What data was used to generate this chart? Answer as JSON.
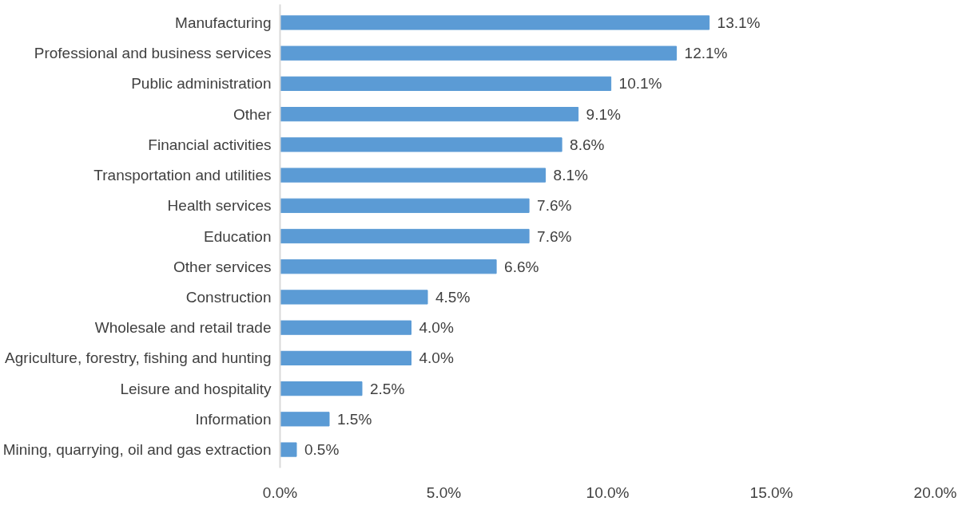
{
  "chart_data": {
    "type": "bar",
    "orientation": "horizontal",
    "categories": [
      "Manufacturing",
      "Professional and business services",
      "Public administration",
      "Other",
      "Financial activities",
      "Transportation and utilities",
      "Health services",
      "Education",
      "Other services",
      "Construction",
      "Wholesale and retail trade",
      "Agriculture, forestry, fishing and hunting",
      "Leisure and hospitality",
      "Information",
      "Mining, quarrying, oil and gas extraction"
    ],
    "values": [
      13.1,
      12.1,
      10.1,
      9.1,
      8.6,
      8.1,
      7.6,
      7.6,
      6.6,
      4.5,
      4.0,
      4.0,
      2.5,
      1.5,
      0.5
    ],
    "value_labels": [
      "13.1%",
      "12.1%",
      "10.1%",
      "9.1%",
      "8.6%",
      "8.1%",
      "7.6%",
      "7.6%",
      "6.6%",
      "4.5%",
      "4.0%",
      "4.0%",
      "2.5%",
      "1.5%",
      "0.5%"
    ],
    "color": "#5b9bd5",
    "xlim": [
      0,
      20
    ],
    "xticks": [
      {
        "value": 0,
        "label": "0.0%"
      },
      {
        "value": 5,
        "label": "5.0%"
      },
      {
        "value": 10,
        "label": "10.0%"
      },
      {
        "value": 15,
        "label": "15.0%"
      },
      {
        "value": 20,
        "label": "20.0%"
      }
    ],
    "grid": false
  }
}
